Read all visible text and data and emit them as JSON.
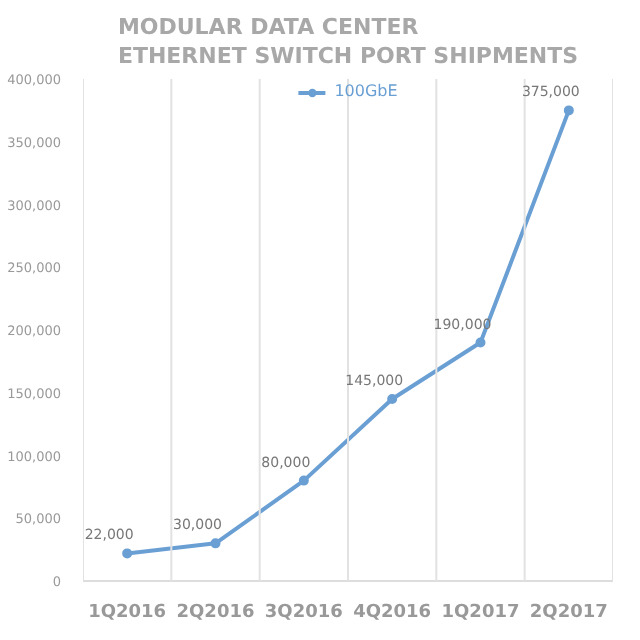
{
  "chart_data": {
    "type": "line",
    "title": "MODULAR DATA CENTER ETHERNET SWITCH PORT SHIPMENTS",
    "categories": [
      "1Q2016",
      "2Q2016",
      "3Q2016",
      "4Q2016",
      "1Q2017",
      "2Q2017"
    ],
    "series": [
      {
        "name": "100GbE",
        "color": "#6a9fd4",
        "values": [
          22000,
          30000,
          80000,
          145000,
          190000,
          375000
        ],
        "value_labels": [
          "22,000",
          "30,000",
          "80,000",
          "145,000",
          "190,000",
          "375,000"
        ]
      }
    ],
    "ylim": [
      0,
      400000
    ],
    "yticks": [
      {
        "value": 0,
        "label": "0"
      },
      {
        "value": 50000,
        "label": "50,000"
      },
      {
        "value": 100000,
        "label": "100,000"
      },
      {
        "value": 150000,
        "label": "150,000"
      },
      {
        "value": 200000,
        "label": "200,000"
      },
      {
        "value": 250000,
        "label": "250,000"
      },
      {
        "value": 300000,
        "label": "300,000"
      },
      {
        "value": 350000,
        "label": "350,000"
      },
      {
        "value": 400000,
        "label": "400,000"
      }
    ],
    "grid": "x",
    "legend": "top",
    "marker": "circle",
    "line_style": "solid"
  }
}
